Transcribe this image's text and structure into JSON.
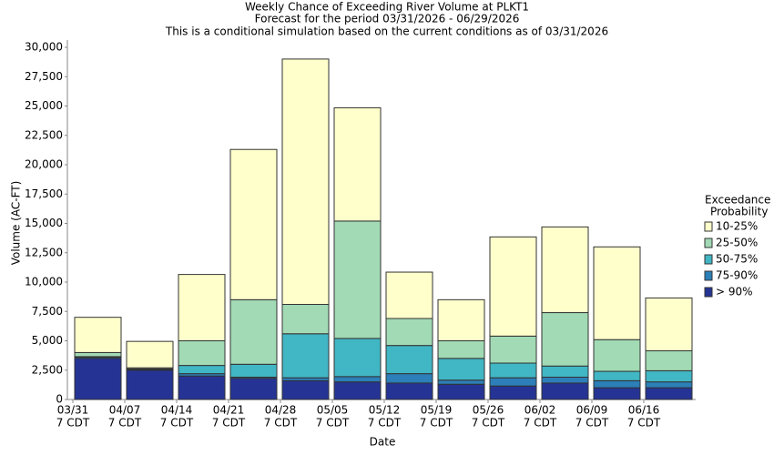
{
  "chart_data": {
    "type": "stacked_bar",
    "title": "Weekly Chance of Exceeding River Volume at PLKT1",
    "subtitle": "Forecast for the period 03/31/2026 - 06/29/2026",
    "subtitle2": "This is a conditional simulation based on the current conditions as of 03/31/2026",
    "x_label": "Date",
    "y_label": "Volume (AC-FT)",
    "categories": [
      "03/31",
      "04/07",
      "04/14",
      "04/21",
      "04/28",
      "05/05",
      "05/12",
      "05/19",
      "05/26",
      "06/02",
      "06/09",
      "06/16"
    ],
    "category_suffix": "7 CDT",
    "legend_title": [
      "Exceedance",
      "Probability"
    ],
    "legend_position": "right",
    "series": [
      {
        "name": "> 90%",
        "color": "#253494",
        "values": [
          3500,
          2500,
          2000,
          1800,
          1600,
          1500,
          1400,
          1300,
          1150,
          1400,
          1000,
          1000
        ]
      },
      {
        "name": "75-90%",
        "color": "#2c7fb8",
        "values": [
          100,
          50,
          200,
          100,
          250,
          450,
          800,
          350,
          700,
          500,
          600,
          500
        ]
      },
      {
        "name": "50-75%",
        "color": "#41b6c4",
        "values": [
          50,
          50,
          700,
          1100,
          3750,
          3250,
          2400,
          1850,
          1250,
          950,
          800,
          950
        ]
      },
      {
        "name": "25-50%",
        "color": "#a1dab4",
        "values": [
          350,
          100,
          2100,
          5500,
          2500,
          10000,
          2300,
          1500,
          2300,
          4550,
          2700,
          1700
        ]
      },
      {
        "name": "10-25%",
        "color": "#ffffcc",
        "values": [
          3000,
          2250,
          5650,
          12800,
          20900,
          9650,
          3950,
          3500,
          8450,
          7300,
          7900,
          4500
        ]
      }
    ],
    "ylim": [
      0,
      30000
    ],
    "yticks": [
      0,
      {
        "value": 2500,
        "label": "2,500"
      },
      {
        "value": 5000,
        "label": "5,000"
      },
      {
        "value": 7500,
        "label": "7,500"
      },
      {
        "value": 10000,
        "label": "10,000"
      },
      {
        "value": 12500,
        "label": "12,500"
      },
      {
        "value": 15000,
        "label": "15,000"
      },
      {
        "value": 17500,
        "label": "17,500"
      },
      {
        "value": 20000,
        "label": "20,000"
      },
      {
        "value": 22500,
        "label": "22,500"
      },
      {
        "value": 25000,
        "label": "25,000"
      },
      {
        "value": 27500,
        "label": "27,500"
      },
      {
        "value": 30000,
        "label": "30,000"
      }
    ],
    "grid": false
  }
}
